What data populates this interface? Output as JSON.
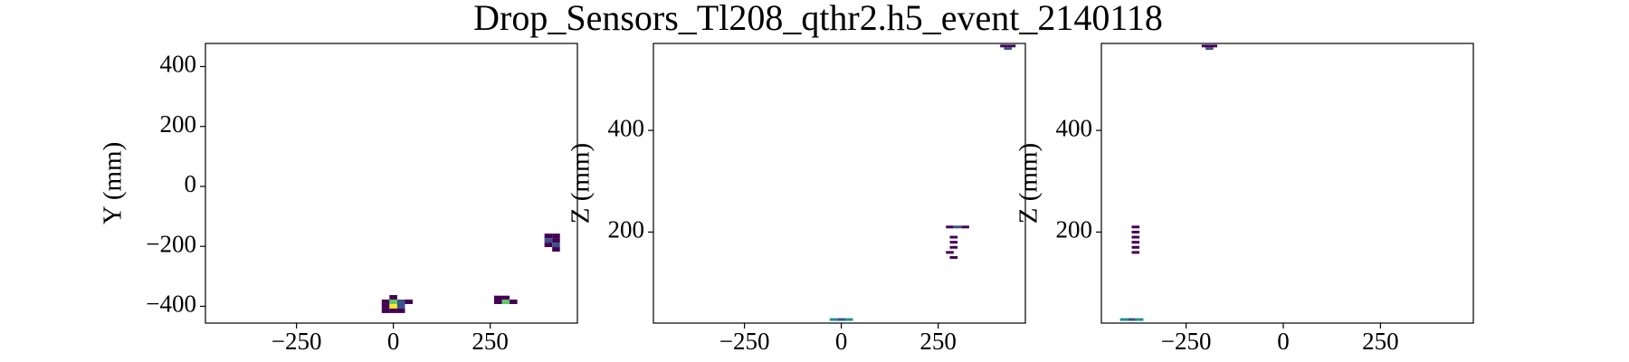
{
  "title": "Drop_Sensors_Tl208_qthr2.h5_event_2140118",
  "chart_data": [
    {
      "type": "heatmap",
      "ylabel": "Y (mm)",
      "xlim": [
        -485,
        475
      ],
      "ylim": [
        -456,
        477
      ],
      "xticks": [
        {
          "value": -250,
          "label": "−250"
        },
        0,
        250
      ],
      "yticks": [
        {
          "value": -400,
          "label": "−400"
        },
        {
          "value": -200,
          "label": "−200"
        },
        0,
        200,
        400
      ],
      "x": [
        0,
        -20,
        0,
        20,
        40,
        -20,
        0,
        20,
        -20,
        0,
        20,
        270,
        290,
        270,
        290,
        310,
        400,
        420,
        400,
        420,
        400,
        420,
        420
      ],
      "y": [
        -370,
        -385,
        -385,
        -385,
        -385,
        -400,
        -400,
        -400,
        -415,
        -415,
        -415,
        -372,
        -372,
        -385,
        -385,
        -385,
        -165,
        -165,
        -180,
        -180,
        -195,
        -195,
        -210
      ],
      "values": [
        1,
        1,
        4,
        2,
        1,
        1,
        5,
        2,
        1,
        1,
        1,
        1,
        1,
        1,
        4,
        1,
        1,
        1,
        2,
        1,
        1,
        2,
        1
      ]
    },
    {
      "type": "heatmap",
      "ylabel": "Z (mm)",
      "xlim": [
        -485,
        475
      ],
      "ylim": [
        21,
        571
      ],
      "xticks": [
        {
          "value": -250,
          "label": "−250"
        },
        0,
        250
      ],
      "yticks": [
        200,
        400
      ],
      "x": [
        -20,
        0,
        20,
        280,
        300,
        320,
        290,
        290,
        290,
        280,
        290,
        420,
        440,
        430
      ],
      "y": [
        28,
        28,
        28,
        210,
        210,
        210,
        190,
        180,
        170,
        160,
        150,
        566,
        566,
        561
      ],
      "values": [
        3,
        2,
        3,
        1,
        2,
        1,
        1,
        1,
        1,
        1,
        1,
        1,
        1,
        2
      ]
    },
    {
      "type": "heatmap",
      "ylabel": "Z (mm)",
      "xlim": [
        -468,
        489
      ],
      "ylim": [
        21,
        571
      ],
      "xticks": [
        {
          "value": -250,
          "label": "−250"
        },
        0,
        250
      ],
      "yticks": [
        200,
        400
      ],
      "x": [
        -410,
        -390,
        -370,
        -380,
        -380,
        -380,
        -380,
        -380,
        -380,
        -200,
        -180,
        -190
      ],
      "y": [
        28,
        28,
        28,
        210,
        200,
        190,
        180,
        170,
        160,
        566,
        566,
        561
      ],
      "values": [
        3,
        2,
        3,
        1,
        1,
        1,
        1,
        1,
        1,
        1,
        1,
        2
      ]
    }
  ],
  "colormap": [
    "#440154",
    "#3b528b",
    "#21918c",
    "#5ec962",
    "#fde725"
  ]
}
